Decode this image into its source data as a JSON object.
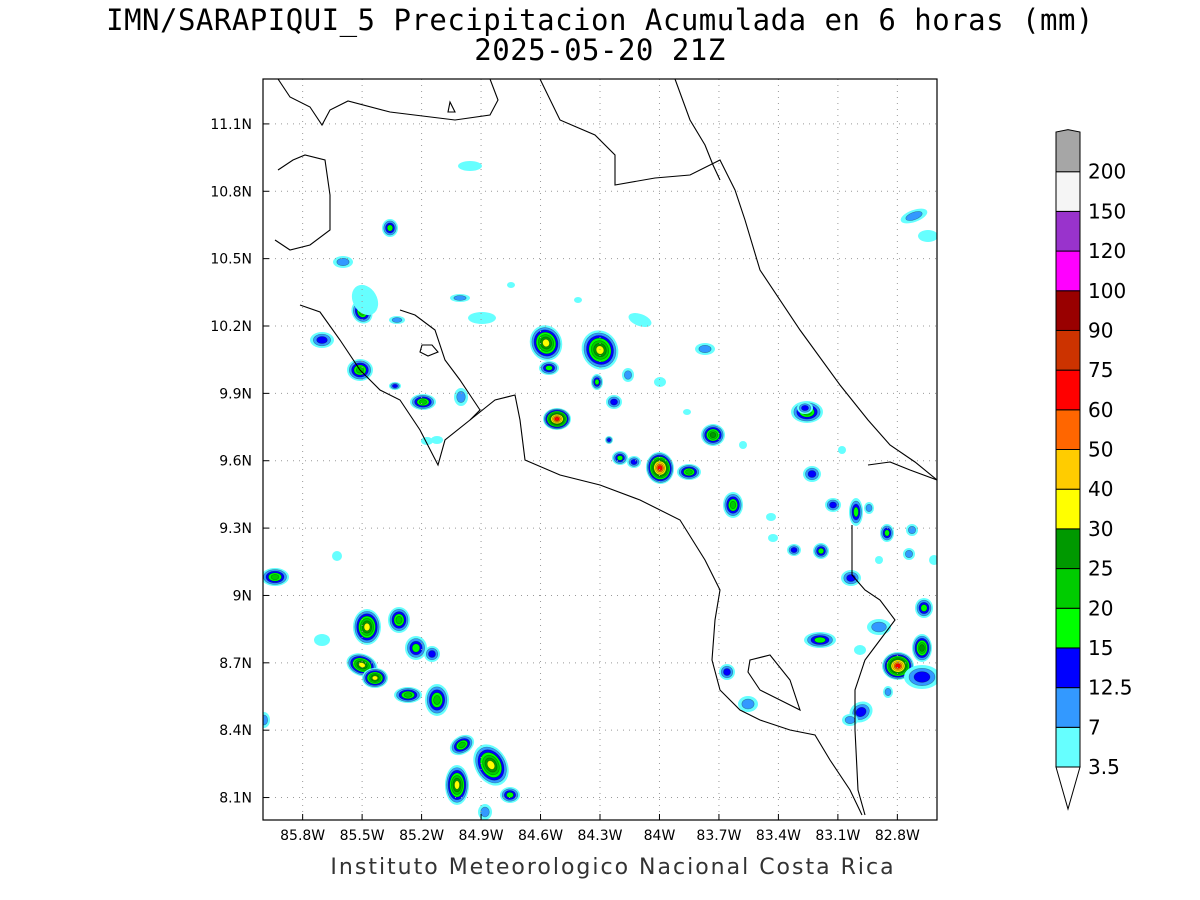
{
  "title": {
    "line1": "IMN/SARAPIQUI_5 Precipitacion Acumulada en 6 horas (mm)",
    "line2": "2025-05-20 21Z"
  },
  "credit": "Instituto Meteorologico Nacional Costa Rica",
  "map": {
    "lon_range": [
      -86.0,
      -82.6
    ],
    "lat_range": [
      8.0,
      11.3
    ],
    "lon_ticks": [
      {
        "value": -85.8,
        "label": "85.8W"
      },
      {
        "value": -85.5,
        "label": "85.5W"
      },
      {
        "value": -85.2,
        "label": "85.2W"
      },
      {
        "value": -84.9,
        "label": "84.9W"
      },
      {
        "value": -84.6,
        "label": "84.6W"
      },
      {
        "value": -84.3,
        "label": "84.3W"
      },
      {
        "value": -84.0,
        "label": "84W"
      },
      {
        "value": -83.7,
        "label": "83.7W"
      },
      {
        "value": -83.4,
        "label": "83.4W"
      },
      {
        "value": -83.1,
        "label": "83.1W"
      },
      {
        "value": -82.8,
        "label": "82.8W"
      }
    ],
    "lat_ticks": [
      {
        "value": 11.1,
        "label": "11.1N"
      },
      {
        "value": 10.8,
        "label": "10.8N"
      },
      {
        "value": 10.5,
        "label": "10.5N"
      },
      {
        "value": 10.2,
        "label": "10.2N"
      },
      {
        "value": 9.9,
        "label": "9.9N"
      },
      {
        "value": 9.6,
        "label": "9.6N"
      },
      {
        "value": 9.3,
        "label": "9.3N"
      },
      {
        "value": 9.0,
        "label": "9N"
      },
      {
        "value": 8.7,
        "label": "8.7N"
      },
      {
        "value": 8.4,
        "label": "8.4N"
      },
      {
        "value": 8.1,
        "label": "8.1N"
      }
    ],
    "grid": "dotted"
  },
  "colorbar": {
    "levels": [
      {
        "label": "3.5",
        "color": "#66ffff"
      },
      {
        "label": "7",
        "color": "#3399ff"
      },
      {
        "label": "12.5",
        "color": "#0000ff"
      },
      {
        "label": "15",
        "color": "#00ff00"
      },
      {
        "label": "20",
        "color": "#00cc00"
      },
      {
        "label": "25",
        "color": "#009900"
      },
      {
        "label": "30",
        "color": "#ffff00"
      },
      {
        "label": "40",
        "color": "#ffcc00"
      },
      {
        "label": "50",
        "color": "#ff6600"
      },
      {
        "label": "60",
        "color": "#ff0000"
      },
      {
        "label": "75",
        "color": "#cc3300"
      },
      {
        "label": "90",
        "color": "#990000"
      },
      {
        "label": "100",
        "color": "#ff00ff"
      },
      {
        "label": "120",
        "color": "#9933cc"
      },
      {
        "label": "150",
        "color": "#f5f5f5"
      },
      {
        "label": "200",
        "color": "#a6a6a6"
      }
    ]
  }
}
